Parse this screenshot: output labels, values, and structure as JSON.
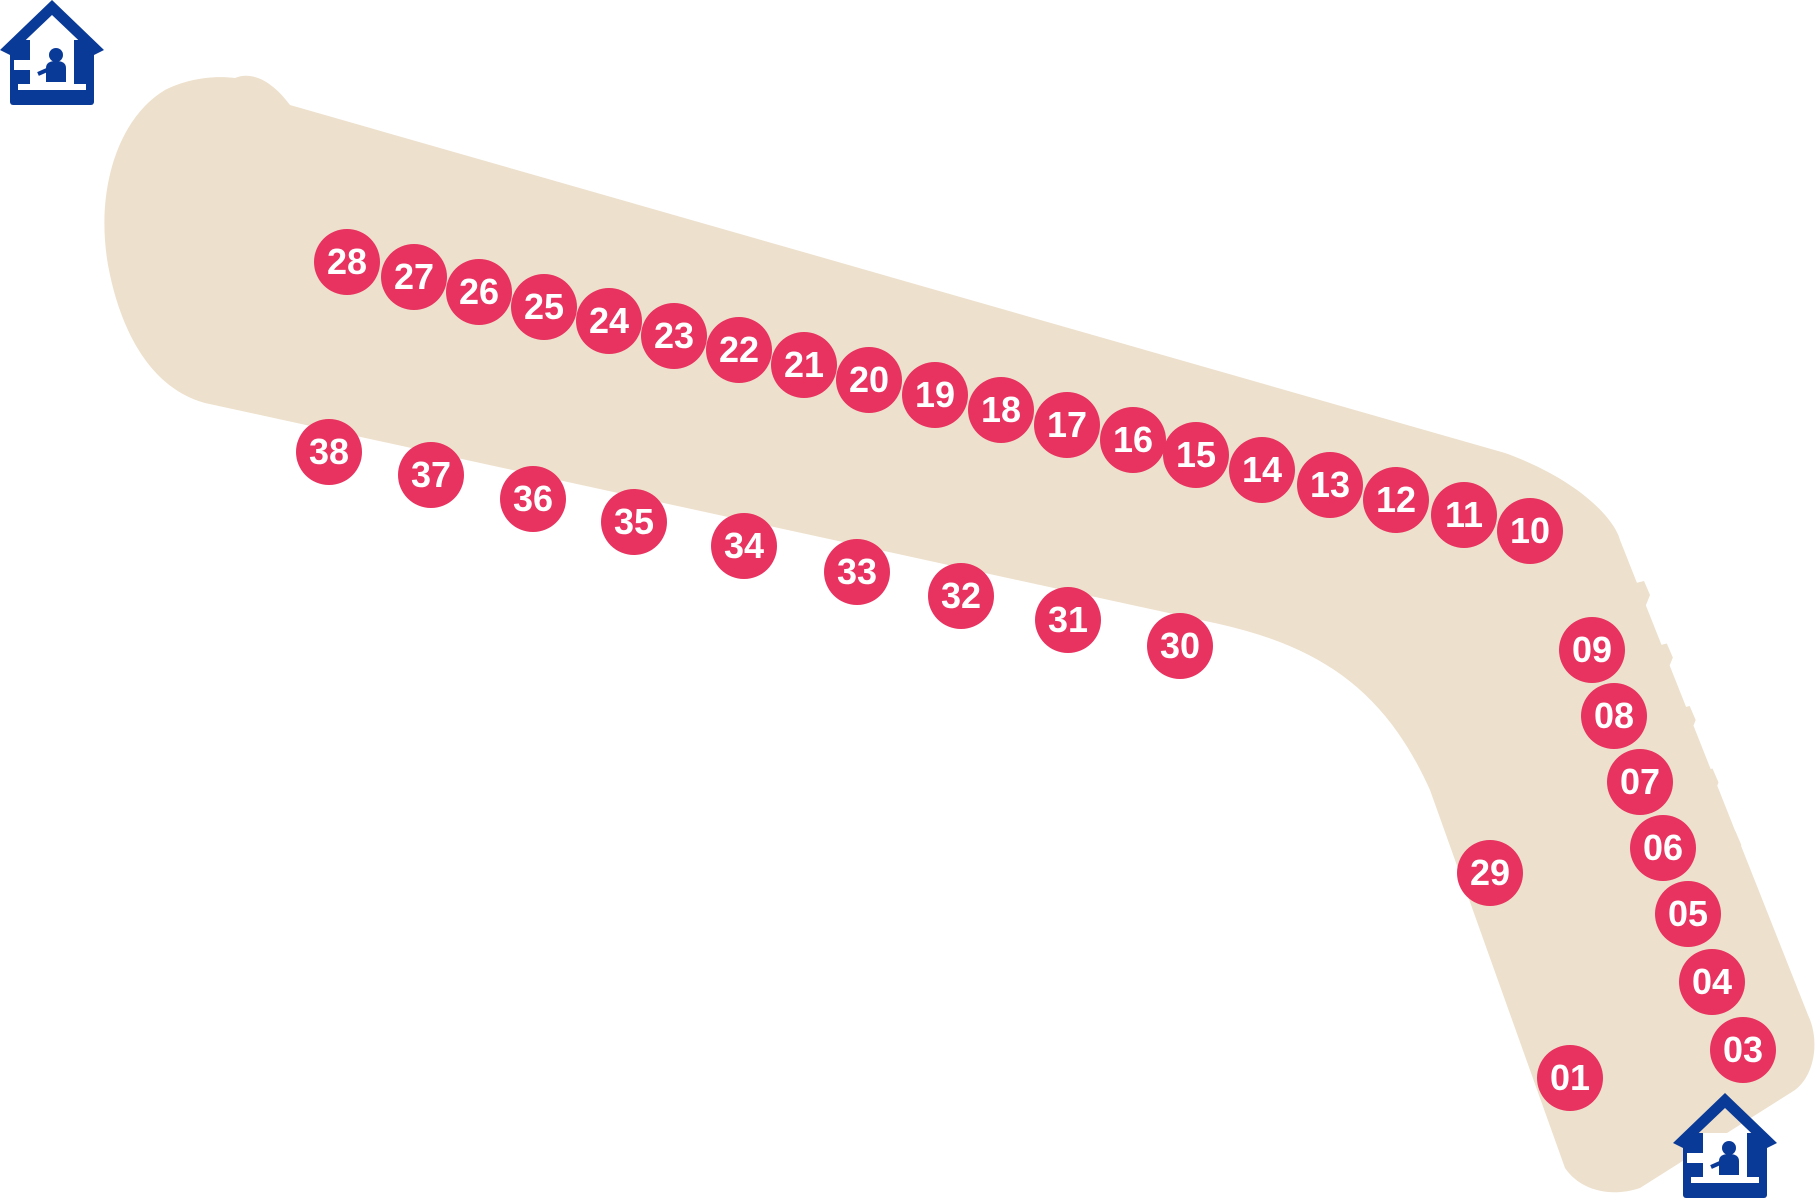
{
  "map": {
    "colors": {
      "background": "#ffffff",
      "terminal_fill": "#ede0cc",
      "stand_fill": "#e8325f",
      "stand_text": "#ffffff",
      "kiosk_fill": "#0a3a98",
      "kiosk_icon": "#ffffff"
    },
    "kiosks": [
      {
        "name": "service-kiosk-icon-top-left",
        "icon": "kiosk-house-icon"
      },
      {
        "name": "service-kiosk-icon-bottom-right",
        "icon": "kiosk-house-icon"
      }
    ],
    "stands": [
      "01",
      "03",
      "04",
      "05",
      "06",
      "07",
      "08",
      "09",
      "10",
      "11",
      "12",
      "13",
      "14",
      "15",
      "16",
      "17",
      "18",
      "19",
      "20",
      "21",
      "22",
      "23",
      "24",
      "25",
      "26",
      "27",
      "28",
      "29",
      "30",
      "31",
      "32",
      "33",
      "34",
      "35",
      "36",
      "37",
      "38"
    ]
  }
}
